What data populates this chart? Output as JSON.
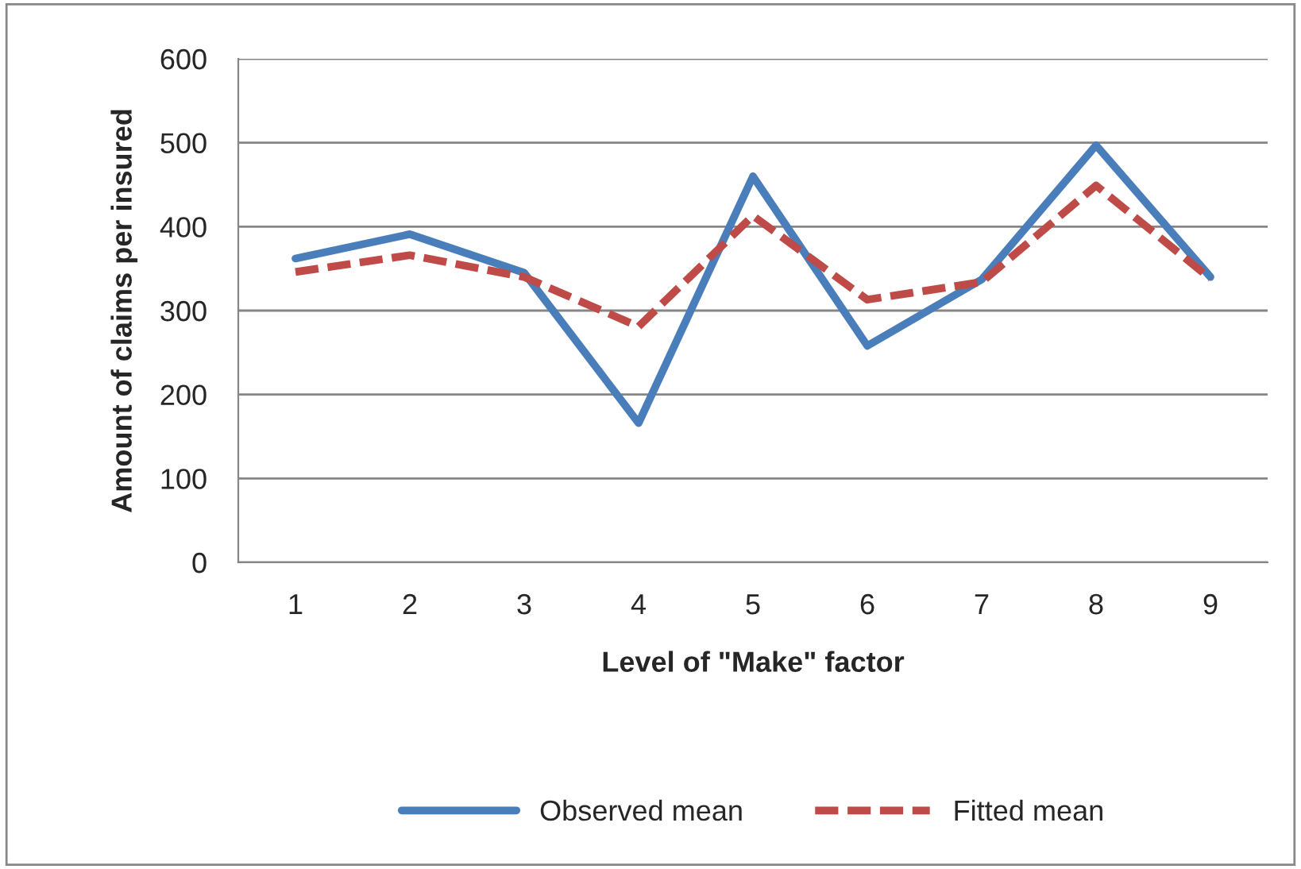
{
  "chart_data": {
    "type": "line",
    "xlabel": "Level of \"Make\" factor",
    "ylabel": "Amount of claims per insured",
    "categories": [
      "1",
      "2",
      "3",
      "4",
      "5",
      "6",
      "7",
      "8",
      "9"
    ],
    "series": [
      {
        "name": "Observed mean",
        "color": "#4a7ebb",
        "line_style": "solid",
        "values": [
          362,
          391,
          345,
          166,
          460,
          258,
          337,
          497,
          340
        ]
      },
      {
        "name": "Fitted mean",
        "color": "#be4b48",
        "line_style": "dashed",
        "values": [
          346,
          366,
          340,
          281,
          413,
          313,
          334,
          449,
          338
        ]
      }
    ],
    "ylim": [
      0,
      600
    ],
    "yticks": [
      0,
      100,
      200,
      300,
      400,
      500,
      600
    ],
    "grid": "y",
    "legend": "bottom",
    "marker": "none"
  }
}
